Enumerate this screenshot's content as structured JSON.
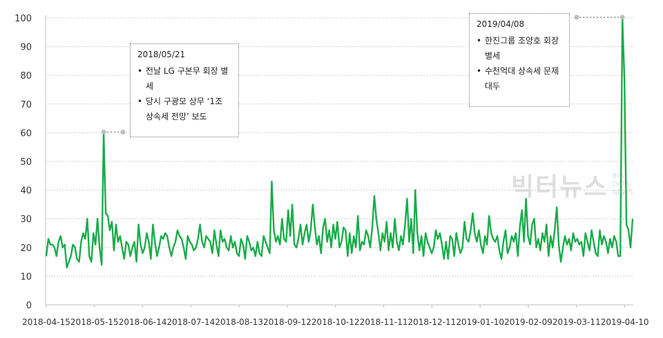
{
  "chart_data": {
    "type": "line",
    "ylim": [
      0,
      100
    ],
    "y_ticks": [
      0,
      10,
      20,
      30,
      40,
      50,
      60,
      70,
      80,
      90,
      100
    ],
    "x_tick_labels": [
      "2018-04-15",
      "2018-05-15",
      "2018-06-14",
      "2018-07-14",
      "2018-08-13",
      "2018-09-12",
      "2018-10-12",
      "2018-11-11",
      "2018-12-11",
      "2019-01-10",
      "2019-02-09",
      "2019-03-11",
      "2019-04-10"
    ],
    "grid": true,
    "series": [
      {
        "color": "#1aab4a",
        "values": [
          17,
          23,
          21,
          21,
          20,
          17,
          22,
          24,
          20,
          21,
          13,
          15,
          17,
          21,
          20,
          16,
          15,
          22,
          25,
          23,
          30,
          17,
          15,
          25,
          21,
          30,
          20,
          14,
          60,
          32,
          31,
          26,
          29,
          19,
          28,
          22,
          24,
          20,
          16,
          22,
          21,
          17,
          20,
          22,
          15,
          28,
          21,
          18,
          20,
          25,
          22,
          16,
          28,
          22,
          17,
          20,
          24,
          23,
          25,
          24,
          20,
          17,
          20,
          22,
          26,
          24,
          23,
          20,
          16,
          24,
          22,
          21,
          19,
          20,
          23,
          28,
          22,
          20,
          24,
          23,
          22,
          18,
          26,
          21,
          17,
          26,
          22,
          23,
          20,
          19,
          24,
          20,
          22,
          18,
          17,
          23,
          21,
          16,
          24,
          22,
          19,
          20,
          17,
          22,
          18,
          17,
          24,
          22,
          20,
          18,
          43,
          26,
          22,
          24,
          21,
          30,
          23,
          22,
          33,
          24,
          35,
          21,
          20,
          23,
          28,
          21,
          25,
          28,
          22,
          26,
          35,
          27,
          21,
          24,
          18,
          27,
          30,
          22,
          26,
          20,
          28,
          23,
          29,
          20,
          22,
          27,
          26,
          17,
          25,
          18,
          24,
          20,
          31,
          19,
          22,
          21,
          26,
          24,
          20,
          27,
          38,
          30,
          25,
          19,
          25,
          22,
          29,
          19,
          25,
          20,
          30,
          22,
          19,
          24,
          21,
          28,
          37,
          22,
          30,
          18,
          40,
          25,
          19,
          24,
          17,
          25,
          22,
          20,
          18,
          20,
          26,
          23,
          25,
          21,
          16,
          22,
          16,
          24,
          23,
          17,
          25,
          21,
          18,
          20,
          29,
          23,
          22,
          26,
          32,
          25,
          22,
          26,
          21,
          18,
          24,
          21,
          31,
          25,
          23,
          22,
          24,
          19,
          16,
          22,
          26,
          18,
          20,
          24,
          22,
          25,
          17,
          27,
          33,
          22,
          37,
          24,
          21,
          28,
          30,
          20,
          23,
          19,
          25,
          22,
          28,
          17,
          24,
          20,
          26,
          34,
          21,
          15,
          20,
          24,
          21,
          23,
          19,
          25,
          22,
          23,
          21,
          22,
          17,
          25,
          22,
          19,
          26,
          22,
          18,
          17,
          26,
          21,
          24,
          22,
          18,
          23,
          20,
          24,
          22,
          17,
          17,
          100,
          79,
          28,
          26,
          20,
          30
        ]
      }
    ],
    "annotations": [
      {
        "date": "2018/05/21",
        "lines": [
          "전날 LG 구본무 회장 별세",
          "당시 구광모 상무 ‘1조 상속세 전망’ 보도"
        ]
      },
      {
        "date": "2019/04/08",
        "lines": [
          "한진그룹 조양호 회장 별세",
          "수천억대 상속세 문제 대두"
        ]
      }
    ]
  },
  "watermark": {
    "main": "빅터뉴스",
    "sub": [
      "BIG",
      "DATA",
      "NEWS"
    ]
  }
}
